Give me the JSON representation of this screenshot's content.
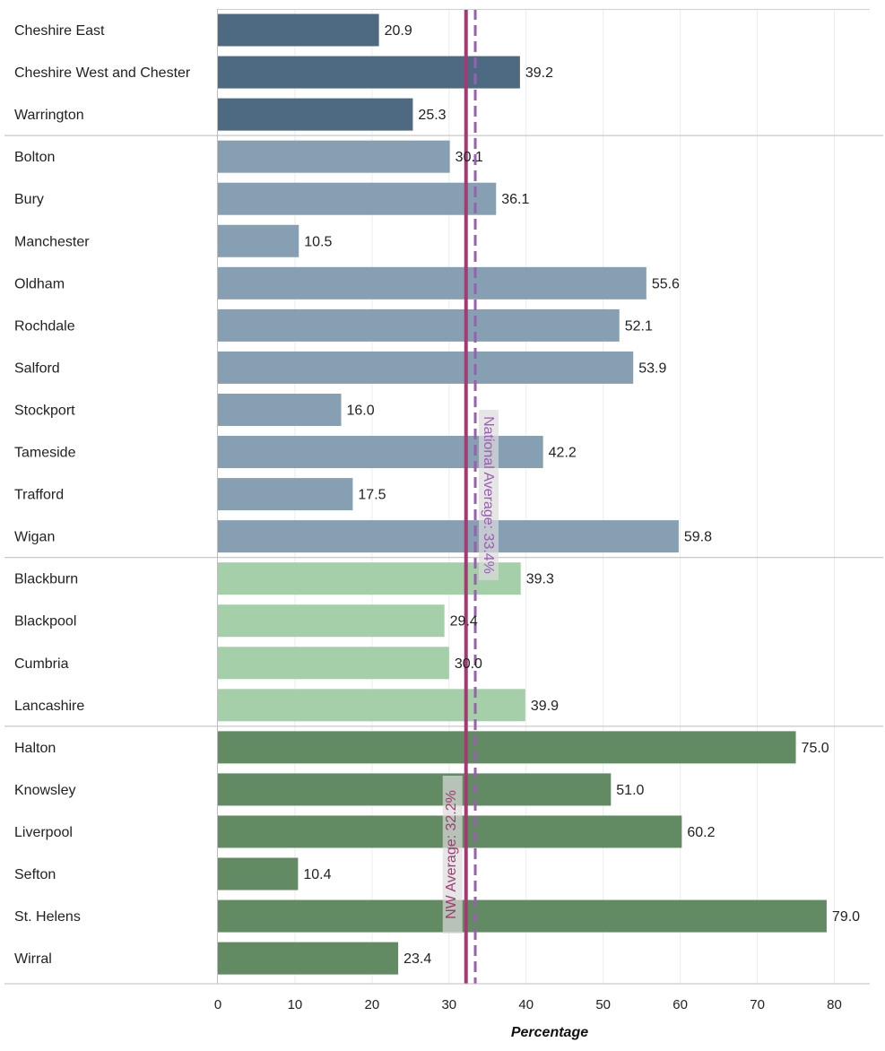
{
  "chart_data": {
    "type": "bar",
    "orientation": "horizontal",
    "xlabel": "Percentage",
    "xlim": [
      0,
      82
    ],
    "xticks": [
      0,
      10,
      20,
      30,
      40,
      50,
      60,
      70,
      80
    ],
    "grid": true,
    "groups": [
      {
        "color": "#4e6a82",
        "categories": [
          "Cheshire East",
          "Cheshire West and Chester",
          "Warrington"
        ],
        "values": [
          20.9,
          39.2,
          25.3
        ]
      },
      {
        "color": "#869fb2",
        "categories": [
          "Bolton",
          "Bury",
          "Manchester",
          "Oldham",
          "Rochdale",
          "Salford",
          "Stockport",
          "Tameside",
          "Trafford",
          "Wigan"
        ],
        "values": [
          30.1,
          36.1,
          10.5,
          55.6,
          52.1,
          53.9,
          16.0,
          42.2,
          17.5,
          59.8
        ]
      },
      {
        "color": "#a5cfa9",
        "categories": [
          "Blackburn",
          "Blackpool",
          "Cumbria",
          "Lancashire"
        ],
        "values": [
          39.3,
          29.4,
          30.0,
          39.9
        ]
      },
      {
        "color": "#628b63",
        "categories": [
          "Halton",
          "Knowsley",
          "Liverpool",
          "Sefton",
          "St. Helens",
          "Wirral"
        ],
        "values": [
          75.0,
          51.0,
          60.2,
          10.4,
          79.0,
          23.4
        ]
      }
    ],
    "reference_lines": [
      {
        "label": "National Average: 33.4%",
        "value": 33.4,
        "style": "dashed",
        "color": "#9a5fb0"
      },
      {
        "label": "NW Average: 32.2%",
        "value": 32.2,
        "style": "solid",
        "color": "#a23b72"
      }
    ]
  }
}
